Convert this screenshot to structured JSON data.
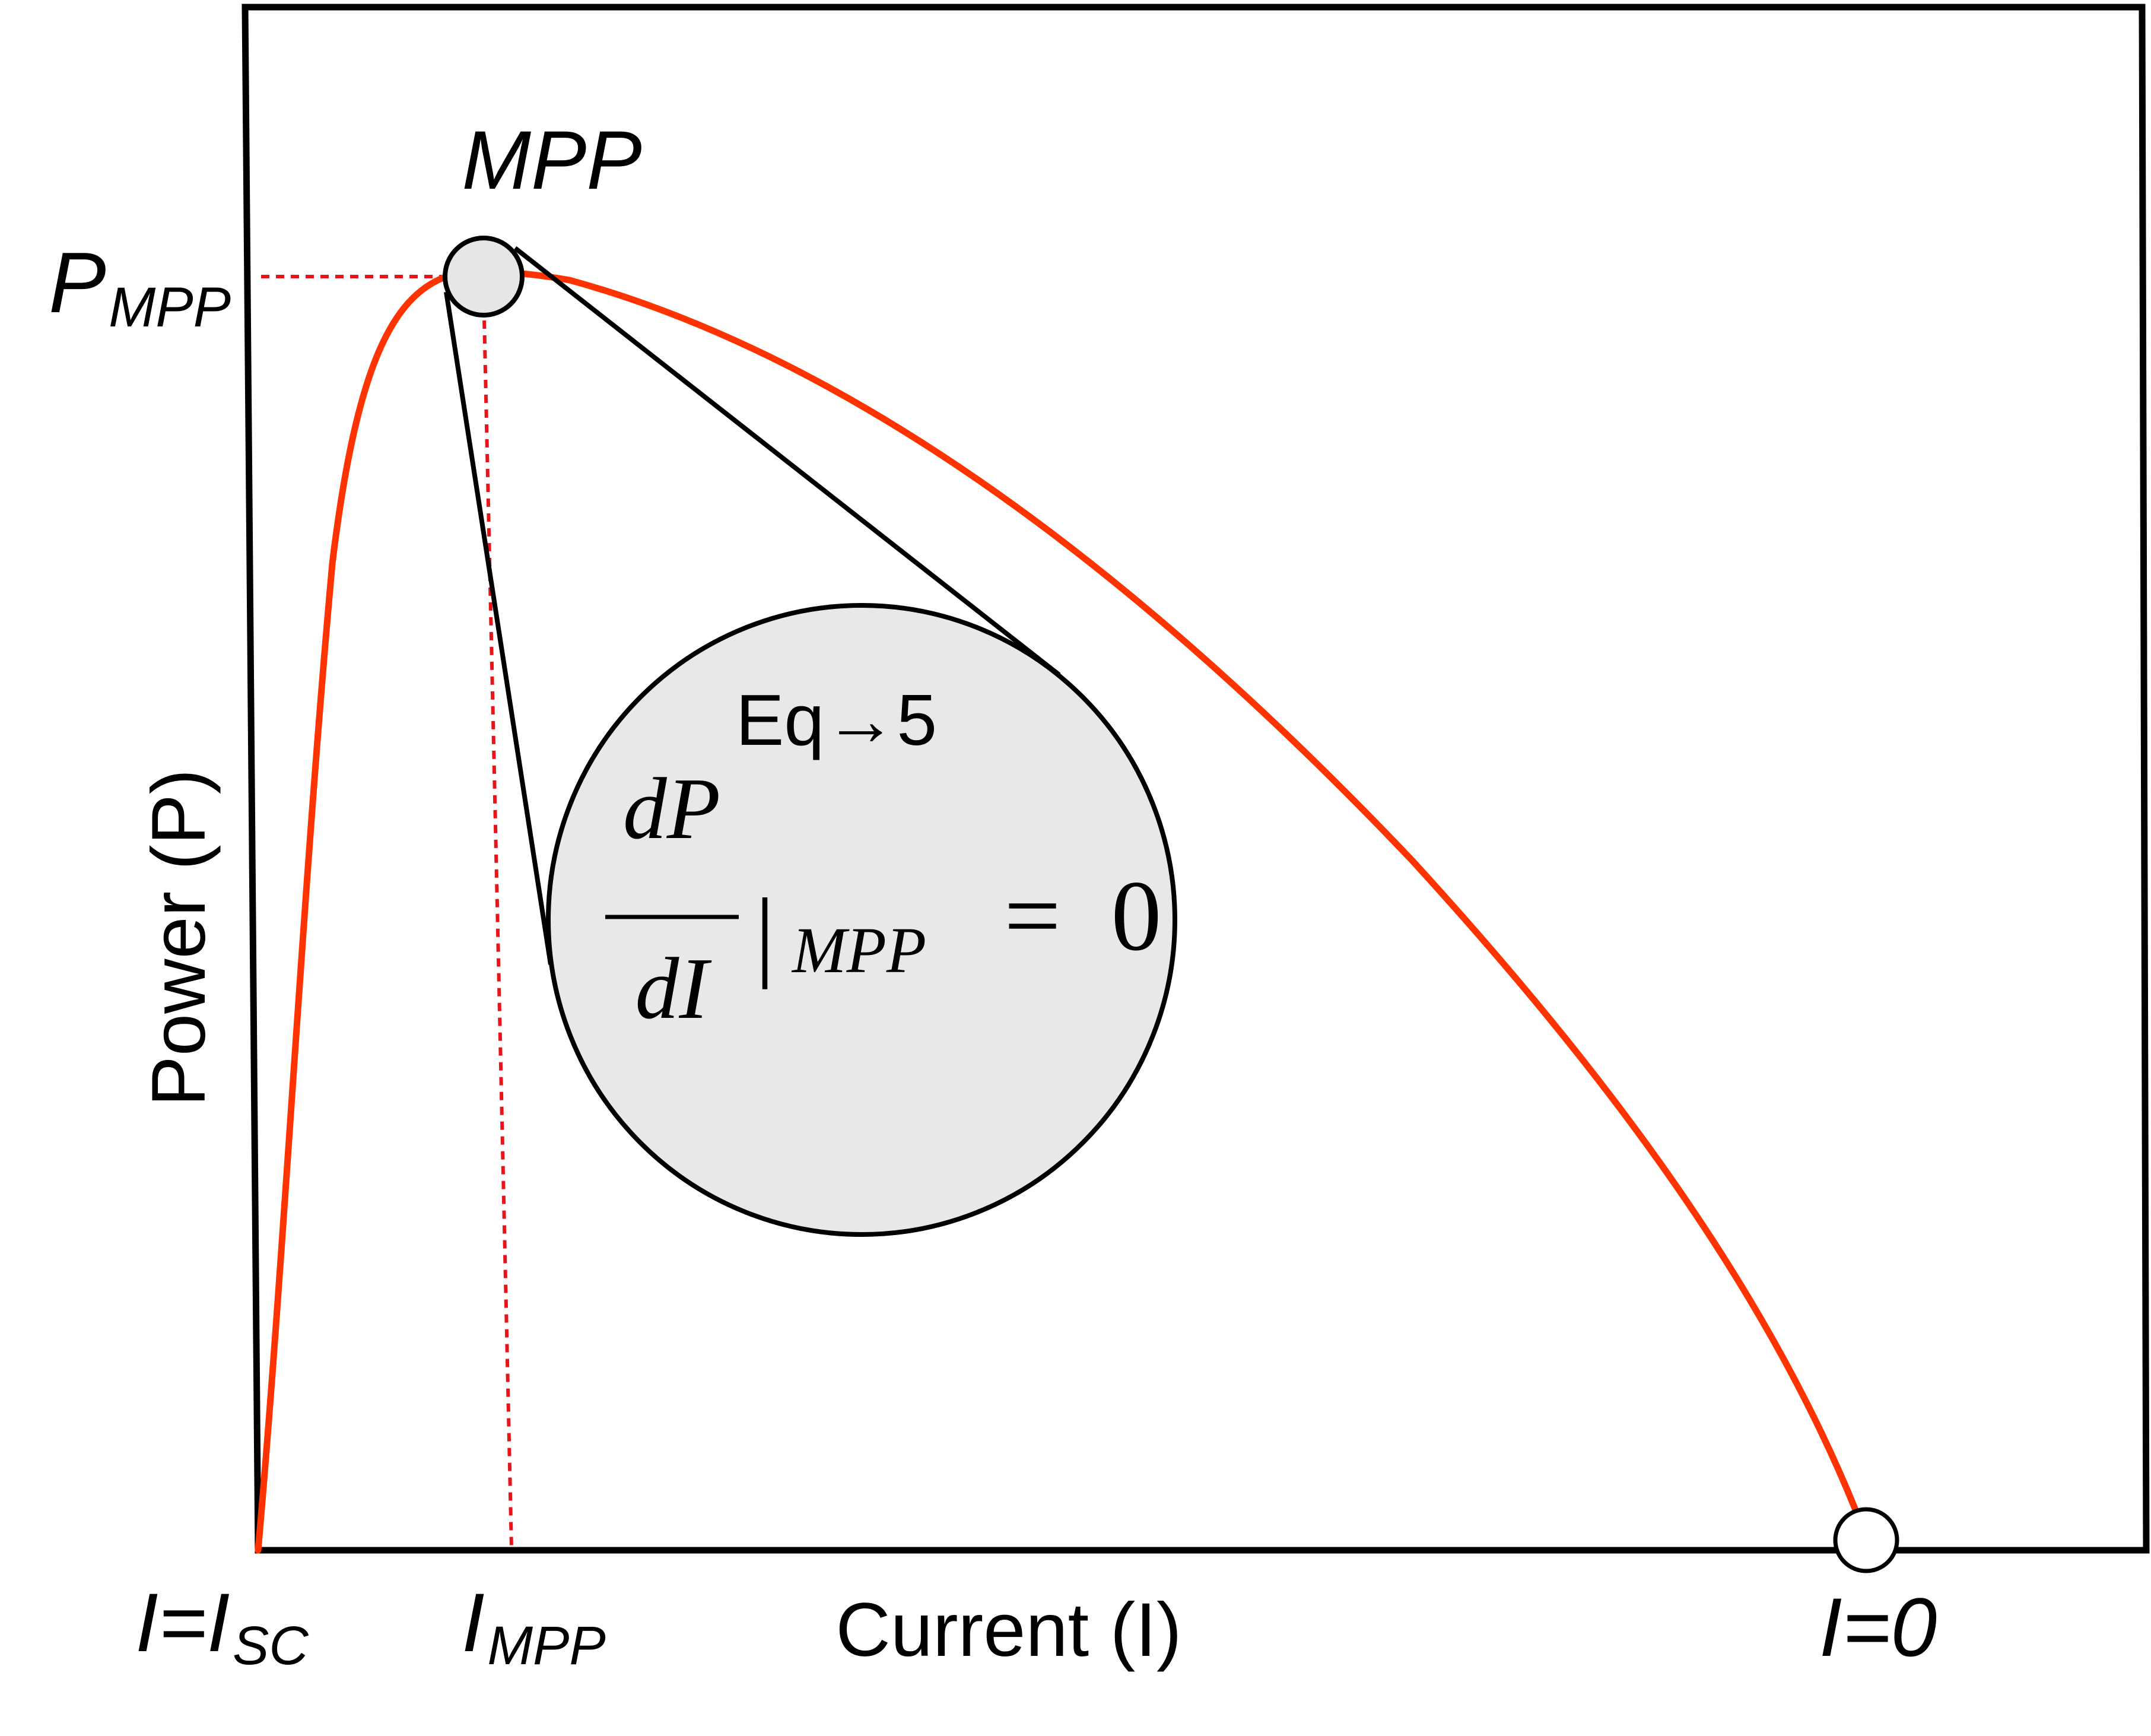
{
  "labels": {
    "mpp": "MPP",
    "p_mpp_main": "P",
    "p_mpp_sub": "MPP",
    "y_axis": "Power (P)",
    "x_axis": "Current (I)",
    "i_sc_main": "I=I",
    "i_sc_sub": "SC",
    "i_mpp_main": "I",
    "i_mpp_sub": "MPP",
    "i_zero": "I=0"
  },
  "callout": {
    "eq_ref_prefix": "Eq",
    "eq_ref_arrow": "→",
    "eq_ref_number": "5",
    "numerator": "dP",
    "denominator": "dI",
    "bar": "|",
    "subscript": "MPP",
    "equals": "=",
    "rhs": "0"
  },
  "colors": {
    "curve": "#ff3300",
    "frame": "#000000",
    "guide": "#e8141a",
    "callout_fill": "#e8e8e8",
    "mpp_fill": "#e6e6e6",
    "endpoint_fill": "#ffffff"
  }
}
